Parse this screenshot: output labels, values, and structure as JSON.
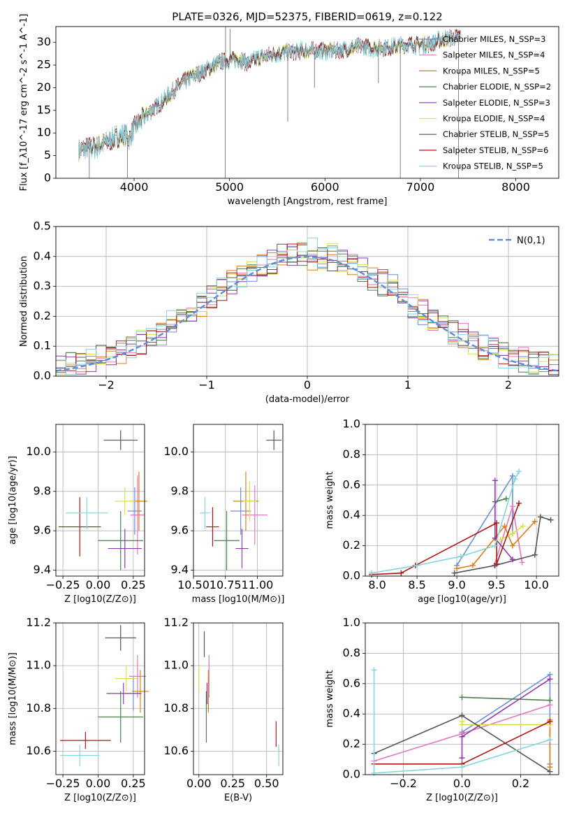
{
  "title": "PLATE=0326, MJD=52375, FIBERID=0619, z=0.122",
  "colors": {
    "Chabrier MILES": "#6a8fd6",
    "Salpeter MILES": "#e377c2",
    "Kroupa MILES": "#d97f1a",
    "Chabrier ELODIE": "#4d7f4d",
    "Salpeter ELODIE": "#8e3aa8",
    "Kroupa ELODIE": "#d8e04a",
    "Chabrier STELIB": "#555555",
    "Salpeter STELIB": "#b01515",
    "Kroupa STELIB": "#86d4dc"
  },
  "chart_data": [
    {
      "id": "spectrum",
      "type": "line",
      "title": "PLATE=0326, MJD=52375, FIBERID=0619, z=0.122",
      "xlabel": "wavelength [Angstrom, rest frame]",
      "ylabel": "Flux [f_λ10^-17 erg cm^-2 s^-1 A^-1]",
      "xlim": [
        3180,
        8450
      ],
      "ylim": [
        0,
        33.5
      ],
      "xticks": [
        4000,
        5000,
        6000,
        7000,
        8000
      ],
      "yticks": [
        0,
        5,
        10,
        15,
        20,
        25,
        30
      ],
      "legend": [
        "Chabrier MILES, N_SSP=3",
        "Salpeter MILES, N_SSP=4",
        "Kroupa MILES, N_SSP=5",
        "Chabrier ELODIE, N_SSP=2",
        "Salpeter ELODIE, N_SSP=3",
        "Kroupa ELODIE, N_SSP=4",
        "Chabrier STELIB, N_SSP=5",
        "Salpeter STELIB, N_SSP=6",
        "Kroupa STELIB, N_SSP=5"
      ],
      "continuum": [
        [
          3420,
          6.0
        ],
        [
          3500,
          6.5
        ],
        [
          3600,
          7.0
        ],
        [
          3700,
          8.0
        ],
        [
          3800,
          9.0
        ],
        [
          3900,
          9.5
        ],
        [
          3950,
          8.5
        ],
        [
          4000,
          11.0
        ],
        [
          4100,
          13.5
        ],
        [
          4200,
          15.5
        ],
        [
          4300,
          17.0
        ],
        [
          4400,
          19.0
        ],
        [
          4500,
          21.0
        ],
        [
          4600,
          22.5
        ],
        [
          4700,
          23.5
        ],
        [
          4800,
          24.5
        ],
        [
          4900,
          25.5
        ],
        [
          5000,
          26.0
        ],
        [
          5100,
          26.5
        ],
        [
          5200,
          25.5
        ],
        [
          5300,
          26.5
        ],
        [
          5400,
          27.0
        ],
        [
          5500,
          27.5
        ],
        [
          5600,
          28.0
        ],
        [
          5700,
          28.0
        ],
        [
          5800,
          28.2
        ],
        [
          5900,
          28.0
        ],
        [
          6000,
          28.2
        ],
        [
          6100,
          28.3
        ],
        [
          6200,
          28.5
        ],
        [
          6300,
          28.8
        ],
        [
          6400,
          29.0
        ],
        [
          6500,
          28.8
        ],
        [
          6600,
          29.0
        ],
        [
          6700,
          29.0
        ],
        [
          6800,
          29.2
        ],
        [
          6900,
          29.5
        ],
        [
          7000,
          29.5
        ],
        [
          7100,
          29.8
        ],
        [
          7200,
          30.5
        ],
        [
          7300,
          30.8
        ],
        [
          7380,
          31.0
        ],
        [
          7420,
          31.5
        ]
      ],
      "spikes_down": [
        [
          3530,
          0
        ],
        [
          3930,
          0
        ],
        [
          4955,
          0
        ],
        [
          5610,
          12.5
        ],
        [
          5890,
          20.0
        ],
        [
          6560,
          21.0
        ],
        [
          6790,
          0
        ],
        [
          7400,
          0
        ]
      ],
      "spikes_up": [
        [
          4958,
          33.5
        ],
        [
          5005,
          33.0
        ],
        [
          7180,
          31.0
        ]
      ]
    },
    {
      "id": "residuals",
      "type": "histogram",
      "xlabel": "(data-model)/error",
      "ylabel": "Normed distribution",
      "xlim": [
        -2.5,
        2.5
      ],
      "ylim": [
        0,
        0.5
      ],
      "xticks": [
        -2,
        -1,
        0,
        1,
        2
      ],
      "yticks": [
        0.0,
        0.1,
        0.2,
        0.3,
        0.4,
        0.5
      ],
      "bin_width": 0.1,
      "legend": "N(0,1)"
    },
    {
      "id": "age-vs-Z",
      "type": "scatter",
      "xlabel": "Z [log10(Z/Z⊙)]",
      "ylabel": "age [log10(age/yr)]",
      "xlim": [
        -0.3,
        0.33
      ],
      "ylim": [
        9.37,
        10.14
      ],
      "xticks": [
        -0.25,
        0.0,
        0.25
      ],
      "yticks": [
        9.4,
        9.6,
        9.8,
        10.0
      ],
      "points": [
        {
          "model": "Chabrier MILES",
          "x": 0.26,
          "y": 9.7,
          "xerr": 0.05,
          "yerr": 0.12
        },
        {
          "model": "Salpeter MILES",
          "x": 0.28,
          "y": 9.68,
          "xerr": 0.05,
          "yerr": 0.2
        },
        {
          "model": "Kroupa MILES",
          "x": 0.29,
          "y": 9.75,
          "xerr": 0.06,
          "yerr": 0.15
        },
        {
          "model": "Chabrier ELODIE",
          "x": 0.16,
          "y": 9.55,
          "xerr": 0.16,
          "yerr": 0.15
        },
        {
          "model": "Salpeter ELODIE",
          "x": 0.19,
          "y": 9.51,
          "xerr": 0.12,
          "yerr": 0.1
        },
        {
          "model": "Kroupa ELODIE",
          "x": 0.19,
          "y": 9.75,
          "xerr": 0.07,
          "yerr": 0.07
        },
        {
          "model": "Chabrier STELIB",
          "x": 0.16,
          "y": 10.06,
          "xerr": 0.12,
          "yerr": 0.05
        },
        {
          "model": "Salpeter STELIB",
          "x": -0.13,
          "y": 9.62,
          "xerr": 0.15,
          "yerr": 0.15
        },
        {
          "model": "Kroupa STELIB",
          "x": -0.08,
          "y": 9.69,
          "xerr": 0.15,
          "yerr": 0.08
        }
      ]
    },
    {
      "id": "age-vs-mass",
      "type": "scatter",
      "xlabel": "mass [log10(M/M⊙)]",
      "xlim": [
        10.5,
        11.2
      ],
      "ylim": [
        9.37,
        10.14
      ],
      "xticks": [
        10.5,
        10.75,
        11.0
      ],
      "yticks": [
        9.4,
        9.6,
        9.8,
        10.0
      ],
      "points": [
        {
          "model": "Chabrier MILES",
          "x": 10.87,
          "y": 9.7,
          "xerr": 0.08,
          "yerr": 0.12
        },
        {
          "model": "Salpeter MILES",
          "x": 10.98,
          "y": 9.68,
          "xerr": 0.1,
          "yerr": 0.15
        },
        {
          "model": "Kroupa MILES",
          "x": 10.91,
          "y": 9.75,
          "xerr": 0.1,
          "yerr": 0.15
        },
        {
          "model": "Chabrier ELODIE",
          "x": 10.76,
          "y": 9.55,
          "xerr": 0.1,
          "yerr": 0.15
        },
        {
          "model": "Salpeter ELODIE",
          "x": 10.88,
          "y": 9.51,
          "xerr": 0.05,
          "yerr": 0.1
        },
        {
          "model": "Kroupa ELODIE",
          "x": 10.94,
          "y": 9.75,
          "xerr": 0.05,
          "yerr": 0.1
        },
        {
          "model": "Chabrier STELIB",
          "x": 11.13,
          "y": 10.06,
          "xerr": 0.06,
          "yerr": 0.05
        },
        {
          "model": "Salpeter STELIB",
          "x": 10.65,
          "y": 9.62,
          "xerr": 0.05,
          "yerr": 0.1
        },
        {
          "model": "Kroupa STELIB",
          "x": 10.59,
          "y": 9.69,
          "xerr": 0.04,
          "yerr": 0.08
        }
      ]
    },
    {
      "id": "weight-vs-age",
      "type": "line",
      "xlabel": "age [log10(age/yr)]",
      "ylabel": "mass weight",
      "xlim": [
        7.85,
        10.28
      ],
      "ylim": [
        0,
        1.0
      ],
      "xticks": [
        8.0,
        8.5,
        9.0,
        9.5,
        10.0
      ],
      "yticks": [
        0.0,
        0.2,
        0.4,
        0.6,
        0.8,
        1.0
      ],
      "series": [
        {
          "model": "Chabrier MILES",
          "points": [
            [
              9.0,
              0.07
            ],
            [
              9.7,
              0.66
            ],
            [
              9.7,
              0.28
            ]
          ]
        },
        {
          "model": "Salpeter MILES",
          "points": [
            [
              9.47,
              0.07
            ],
            [
              9.7,
              0.46
            ],
            [
              9.82,
              0.09
            ]
          ]
        },
        {
          "model": "Kroupa MILES",
          "points": [
            [
              9.0,
              0.05
            ],
            [
              9.2,
              0.07
            ],
            [
              9.6,
              0.33
            ],
            [
              9.7,
              0.2
            ],
            [
              9.98,
              0.36
            ]
          ]
        },
        {
          "model": "Chabrier ELODIE",
          "points": [
            [
              9.48,
              0.49
            ],
            [
              9.62,
              0.51
            ]
          ]
        },
        {
          "model": "Salpeter ELODIE",
          "points": [
            [
              9.48,
              0.63
            ],
            [
              9.48,
              0.25
            ],
            [
              9.7,
              0.11
            ]
          ]
        },
        {
          "model": "Kroupa ELODIE",
          "points": [
            [
              9.55,
              0.24
            ],
            [
              9.7,
              0.28
            ],
            [
              9.83,
              0.33
            ]
          ]
        },
        {
          "model": "Chabrier STELIB",
          "points": [
            [
              8.97,
              0.02
            ],
            [
              9.48,
              0.07
            ],
            [
              9.98,
              0.14
            ],
            [
              10.05,
              0.39
            ],
            [
              10.18,
              0.37
            ]
          ]
        },
        {
          "model": "Salpeter STELIB",
          "points": [
            [
              7.93,
              0.01
            ],
            [
              8.3,
              0.02
            ],
            [
              8.48,
              0.07
            ],
            [
              9.5,
              0.35
            ],
            [
              9.5,
              0.08
            ],
            [
              9.78,
              0.48
            ]
          ]
        },
        {
          "model": "Kroupa STELIB",
          "points": [
            [
              7.93,
              0.02
            ],
            [
              8.5,
              0.07
            ],
            [
              9.05,
              0.13
            ],
            [
              9.48,
              0.2
            ],
            [
              9.73,
              0.64
            ],
            [
              9.78,
              0.69
            ]
          ]
        }
      ]
    },
    {
      "id": "mass-vs-Z",
      "type": "scatter",
      "xlabel": "Z [log10(Z/Z⊙)]",
      "ylabel": "mass [log10(M/M⊙)]",
      "xlim": [
        -0.3,
        0.33
      ],
      "ylim": [
        10.49,
        11.2
      ],
      "xticks": [
        -0.25,
        0.0,
        0.25
      ],
      "yticks": [
        10.6,
        10.8,
        11.0,
        11.2
      ],
      "points": [
        {
          "model": "Chabrier MILES",
          "x": 0.25,
          "y": 10.87,
          "xerr": 0.06,
          "yerr": 0.08
        },
        {
          "model": "Salpeter MILES",
          "x": 0.28,
          "y": 10.95,
          "xerr": 0.06,
          "yerr": 0.1
        },
        {
          "model": "Kroupa MILES",
          "x": 0.3,
          "y": 10.88,
          "xerr": 0.06,
          "yerr": 0.1
        },
        {
          "model": "Chabrier ELODIE",
          "x": 0.16,
          "y": 10.76,
          "xerr": 0.16,
          "yerr": 0.12
        },
        {
          "model": "Salpeter ELODIE",
          "x": 0.18,
          "y": 10.87,
          "xerr": 0.12,
          "yerr": 0.05
        },
        {
          "model": "Kroupa ELODIE",
          "x": 0.2,
          "y": 10.94,
          "xerr": 0.08,
          "yerr": 0.06
        },
        {
          "model": "Chabrier STELIB",
          "x": 0.16,
          "y": 11.13,
          "xerr": 0.11,
          "yerr": 0.06
        },
        {
          "model": "Salpeter STELIB",
          "x": -0.09,
          "y": 10.65,
          "xerr": 0.18,
          "yerr": 0.04
        },
        {
          "model": "Kroupa STELIB",
          "x": -0.13,
          "y": 10.58,
          "xerr": 0.14,
          "yerr": 0.05
        }
      ]
    },
    {
      "id": "mass-vs-EBV",
      "type": "scatter",
      "xlabel": "E(B-V)",
      "xlim": [
        -0.04,
        0.62
      ],
      "ylim": [
        10.49,
        11.2
      ],
      "xticks": [
        0.0,
        0.25,
        0.5
      ],
      "yticks": [
        10.6,
        10.8,
        11.0,
        11.2
      ],
      "points": [
        {
          "model": "Chabrier MILES",
          "x": 0.07,
          "y": 10.87,
          "yerr": 0.08
        },
        {
          "model": "Salpeter MILES",
          "x": 0.075,
          "y": 10.95,
          "yerr": 0.1
        },
        {
          "model": "Kroupa MILES",
          "x": 0.07,
          "y": 10.88,
          "yerr": 0.1
        },
        {
          "model": "Chabrier ELODIE",
          "x": 0.055,
          "y": 10.76,
          "yerr": 0.12
        },
        {
          "model": "Salpeter ELODIE",
          "x": 0.06,
          "y": 10.87,
          "yerr": 0.05
        },
        {
          "model": "Kroupa ELODIE",
          "x": 0.0,
          "y": 10.94,
          "yerr": 0.06
        },
        {
          "model": "Chabrier STELIB",
          "x": 0.04,
          "y": 11.1,
          "yerr": 0.06
        },
        {
          "model": "Salpeter STELIB",
          "x": 0.57,
          "y": 10.68,
          "yerr": 0.06
        },
        {
          "model": "Kroupa STELIB",
          "x": 0.59,
          "y": 10.58,
          "yerr": 0.05
        }
      ]
    },
    {
      "id": "weight-vs-Z",
      "type": "line",
      "xlabel": "Z [log10(Z/Z⊙)]",
      "ylabel": "mass weight",
      "xlim": [
        -0.33,
        0.33
      ],
      "ylim": [
        0,
        1.0
      ],
      "xticks": [
        -0.2,
        0.0,
        0.2
      ],
      "yticks": [
        0.0,
        0.2,
        0.4,
        0.6,
        0.8,
        1.0
      ],
      "series": [
        {
          "model": "Chabrier MILES",
          "points": [
            [
              0.0,
              0.28
            ],
            [
              0.3,
              0.66
            ],
            [
              0.3,
              0.07
            ]
          ]
        },
        {
          "model": "Salpeter MILES",
          "points": [
            [
              -0.3,
              0.09
            ],
            [
              0.0,
              0.27
            ],
            [
              0.3,
              0.46
            ]
          ]
        },
        {
          "model": "Kroupa MILES",
          "points": [
            [
              0.3,
              0.36
            ],
            [
              0.3,
              0.05
            ]
          ]
        },
        {
          "model": "Chabrier ELODIE",
          "points": [
            [
              0.0,
              0.51
            ],
            [
              0.3,
              0.49
            ]
          ]
        },
        {
          "model": "Salpeter ELODIE",
          "points": [
            [
              0.0,
              0.11
            ],
            [
              0.0,
              0.25
            ],
            [
              0.3,
              0.63
            ]
          ]
        },
        {
          "model": "Kroupa ELODIE",
          "points": [
            [
              0.0,
              0.35
            ],
            [
              0.0,
              0.33
            ],
            [
              0.3,
              0.33
            ]
          ]
        },
        {
          "model": "Chabrier STELIB",
          "points": [
            [
              -0.3,
              0.14
            ],
            [
              0.0,
              0.39
            ],
            [
              0.3,
              0.02
            ]
          ]
        },
        {
          "model": "Salpeter STELIB",
          "points": [
            [
              -0.3,
              0.07
            ],
            [
              0.0,
              0.07
            ],
            [
              0.3,
              0.35
            ]
          ]
        },
        {
          "model": "Kroupa STELIB",
          "points": [
            [
              -0.3,
              0.69
            ],
            [
              -0.3,
              0.01
            ],
            [
              0.0,
              0.05
            ],
            [
              0.3,
              0.23
            ]
          ]
        }
      ]
    }
  ]
}
